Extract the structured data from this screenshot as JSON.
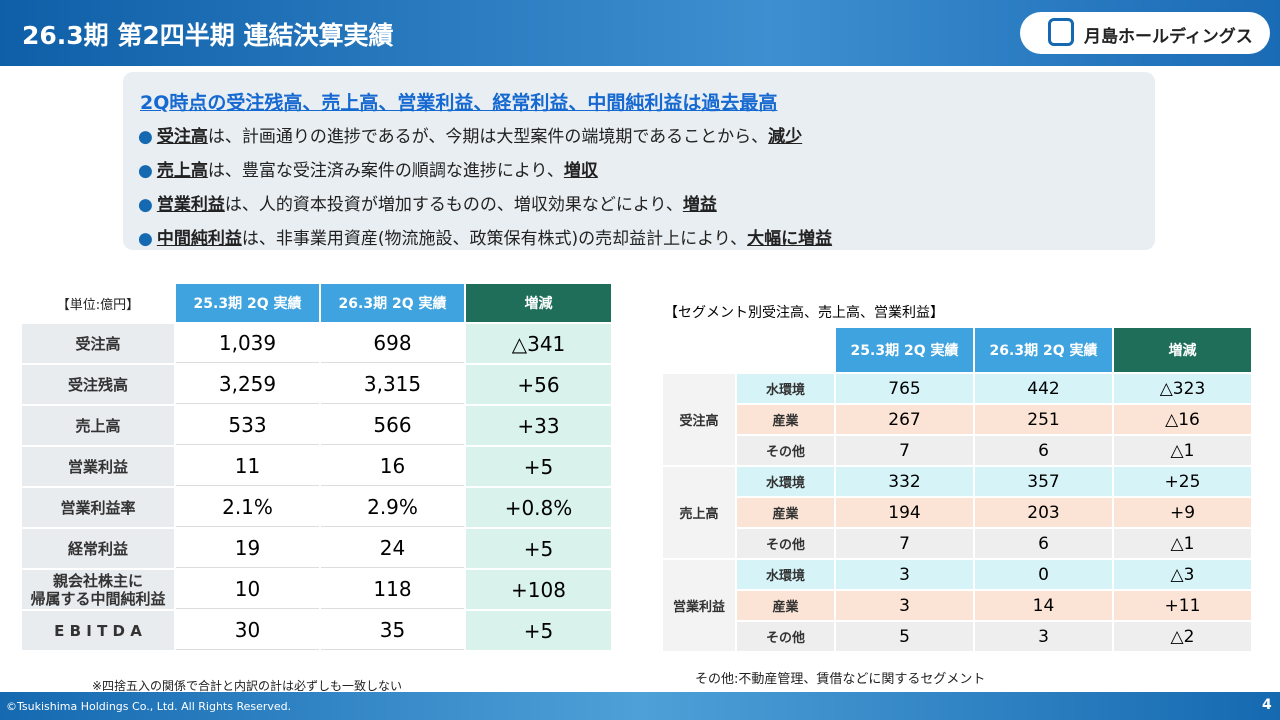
{
  "header": {
    "title": "26.3期 第2四半期 連結決算実績",
    "logo_text": "月島ホールディングス"
  },
  "summary": {
    "headline": "2Q時点の受注残高、売上高、営業利益、経常利益、中間純利益は過去最高",
    "bullets": [
      [
        {
          "text": "受注高",
          "em": true
        },
        {
          "text": "は、計画通りの進捗であるが、今期は大型案件の端境期であることから、"
        },
        {
          "text": "減少",
          "em": true
        }
      ],
      [
        {
          "text": "売上高",
          "em": true
        },
        {
          "text": "は、豊富な受注済み案件の順調な進捗により、"
        },
        {
          "text": "増収",
          "em": true
        }
      ],
      [
        {
          "text": "営業利益",
          "em": true
        },
        {
          "text": "は、人的資本投資が増加するものの、増収効果などにより、"
        },
        {
          "text": "増益",
          "em": true
        }
      ],
      [
        {
          "text": "中間純利益",
          "em": true
        },
        {
          "text": "は、非事業用資産(物流施設、政策保有株式)の売却益計上により、"
        },
        {
          "text": "大幅に増益",
          "em": true
        }
      ]
    ]
  },
  "left_table": {
    "unit": "【単位:億円】",
    "headers": [
      "25.3期 2Q 実績",
      "26.3期 2Q 実績",
      "増減"
    ],
    "rows": [
      [
        "受注高",
        "1,039",
        "698",
        "△341"
      ],
      [
        "受注残高",
        "3,259",
        "3,315",
        "+56"
      ],
      [
        "売上高",
        "533",
        "566",
        "+33"
      ],
      [
        "営業利益",
        "11",
        "16",
        "+5"
      ],
      [
        "営業利益率",
        "2.1%",
        "2.9%",
        "+0.8%"
      ],
      [
        "経常利益",
        "19",
        "24",
        "+5"
      ],
      [
        "親会社株主に\n帰属する中間純利益",
        "10",
        "118",
        "+108"
      ],
      [
        "E B I T D A",
        "30",
        "35",
        "+5"
      ]
    ],
    "note": "※四捨五入の関係で合計と内訳の計は必ずしも一致しない"
  },
  "right_table": {
    "title": "【セグメント別受注高、売上高、営業利益】",
    "headers": [
      "25.3期 2Q 実績",
      "26.3期 2Q 実績",
      "増減"
    ],
    "groups": [
      {
        "name": "受注高",
        "rows": [
          [
            "水環境",
            "765",
            "442",
            "△323"
          ],
          [
            "産業",
            "267",
            "251",
            "△16"
          ],
          [
            "その他",
            "7",
            "6",
            "△1"
          ]
        ]
      },
      {
        "name": "売上高",
        "rows": [
          [
            "水環境",
            "332",
            "357",
            "+25"
          ],
          [
            "産業",
            "194",
            "203",
            "+9"
          ],
          [
            "その他",
            "7",
            "6",
            "△1"
          ]
        ]
      },
      {
        "name": "営業利益",
        "rows": [
          [
            "水環境",
            "3",
            "0",
            "△3"
          ],
          [
            "産業",
            "3",
            "14",
            "+11"
          ],
          [
            "その他",
            "5",
            "3",
            "△2"
          ]
        ]
      }
    ],
    "note": "その他:不動産管理、賃借などに関するセグメント"
  },
  "footer": {
    "copyright": "©Tsukishima Holdings Co., Ltd. All Rights Reserved.",
    "page": "4"
  }
}
